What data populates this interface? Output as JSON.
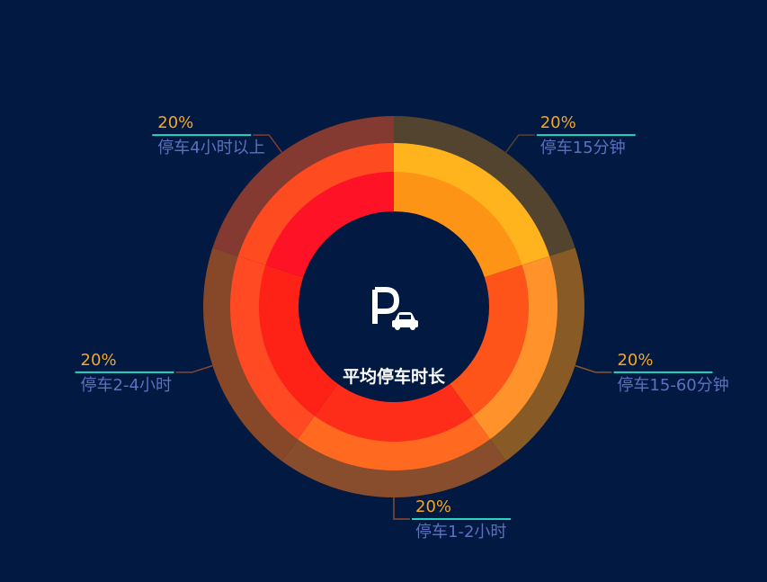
{
  "chart_data": {
    "type": "pie",
    "subtype": "donut-concentric",
    "title": "平均停车时长",
    "center_icon": "parking-car-icon",
    "categories": [
      "停车15分钟",
      "停车15-60分钟",
      "停车1-2小时",
      "停车2-4小时",
      "停车4小时以上"
    ],
    "values": [
      20,
      20,
      20,
      20,
      20
    ],
    "labels": [
      "20%",
      "20%",
      "20%",
      "20%",
      "20%"
    ],
    "ring_colors": {
      "outer": [
        "#53442f",
        "#875a26",
        "#874d2c",
        "#874729",
        "#843a31"
      ],
      "middle": [
        "#ffb31c",
        "#ff922b",
        "#ff6a20",
        "#ff4a23",
        "#ff4b20"
      ],
      "inner": [
        "#fd9416",
        "#fe5419",
        "#fe2d19",
        "#fe2115",
        "#fd1325"
      ]
    },
    "label_pct_color": "#f5a623",
    "label_cat_color": "#5f6fbf",
    "label_underline_color": "#2ad4c2",
    "legend": "none"
  }
}
